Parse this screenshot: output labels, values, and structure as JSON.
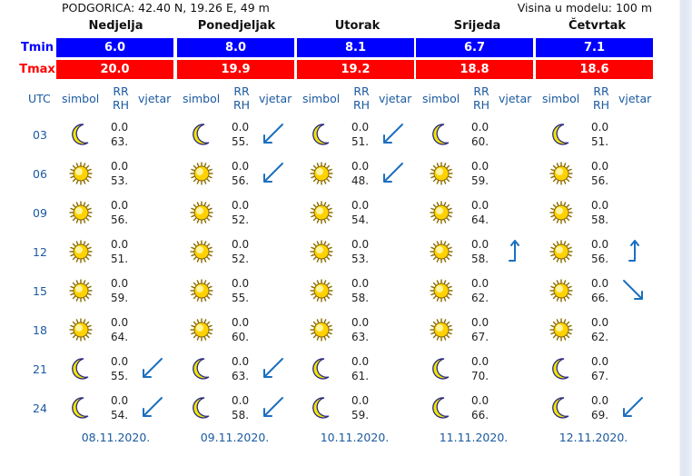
{
  "header": {
    "location": "PODGORICA: 42.40 N, 19.26 E, 49 m",
    "model_height": "Visina u modelu: 100 m"
  },
  "days": [
    "Nedjelja",
    "Ponedjeljak",
    "Utorak",
    "Srijeda",
    "Četvrtak"
  ],
  "tmin_label": "Tmin",
  "tmax_label": "Tmax",
  "tmin": [
    "6.0",
    "8.0",
    "8.1",
    "6.7",
    "7.1"
  ],
  "tmax": [
    "20.0",
    "19.9",
    "19.2",
    "18.8",
    "18.6"
  ],
  "columns": {
    "utc": "UTC",
    "symbol": "simbol",
    "rr": "RR",
    "rh": "RH",
    "wind": "vjetar"
  },
  "hours": [
    "03",
    "06",
    "09",
    "12",
    "15",
    "18",
    "21",
    "24"
  ],
  "forecast": [
    [
      {
        "icon": "moon-icon",
        "rr": "0.0",
        "rh": "63.",
        "wind": ""
      },
      {
        "icon": "sun-icon",
        "rr": "0.0",
        "rh": "53.",
        "wind": ""
      },
      {
        "icon": "sun-icon",
        "rr": "0.0",
        "rh": "56.",
        "wind": ""
      },
      {
        "icon": "sun-icon",
        "rr": "0.0",
        "rh": "51.",
        "wind": ""
      },
      {
        "icon": "sun-icon",
        "rr": "0.0",
        "rh": "59.",
        "wind": ""
      },
      {
        "icon": "sun-icon",
        "rr": "0.0",
        "rh": "64.",
        "wind": ""
      },
      {
        "icon": "moon-icon",
        "rr": "0.0",
        "rh": "55.",
        "wind": "ne"
      },
      {
        "icon": "moon-icon",
        "rr": "0.0",
        "rh": "54.",
        "wind": "ne"
      }
    ],
    [
      {
        "icon": "moon-icon",
        "rr": "0.0",
        "rh": "55.",
        "wind": "ne"
      },
      {
        "icon": "sun-icon",
        "rr": "0.0",
        "rh": "56.",
        "wind": "ne"
      },
      {
        "icon": "sun-icon",
        "rr": "0.0",
        "rh": "52.",
        "wind": ""
      },
      {
        "icon": "sun-icon",
        "rr": "0.0",
        "rh": "52.",
        "wind": ""
      },
      {
        "icon": "sun-icon",
        "rr": "0.0",
        "rh": "55.",
        "wind": ""
      },
      {
        "icon": "sun-icon",
        "rr": "0.0",
        "rh": "60.",
        "wind": ""
      },
      {
        "icon": "moon-icon",
        "rr": "0.0",
        "rh": "63.",
        "wind": "ne"
      },
      {
        "icon": "moon-icon",
        "rr": "0.0",
        "rh": "58.",
        "wind": "ne"
      }
    ],
    [
      {
        "icon": "moon-icon",
        "rr": "0.0",
        "rh": "51.",
        "wind": "ne"
      },
      {
        "icon": "sun-icon",
        "rr": "0.0",
        "rh": "48.",
        "wind": "ne"
      },
      {
        "icon": "sun-icon",
        "rr": "0.0",
        "rh": "54.",
        "wind": ""
      },
      {
        "icon": "sun-icon",
        "rr": "0.0",
        "rh": "53.",
        "wind": ""
      },
      {
        "icon": "sun-icon",
        "rr": "0.0",
        "rh": "58.",
        "wind": ""
      },
      {
        "icon": "sun-icon",
        "rr": "0.0",
        "rh": "63.",
        "wind": ""
      },
      {
        "icon": "moon-icon",
        "rr": "0.0",
        "rh": "61.",
        "wind": ""
      },
      {
        "icon": "moon-icon",
        "rr": "0.0",
        "rh": "59.",
        "wind": ""
      }
    ],
    [
      {
        "icon": "moon-icon",
        "rr": "0.0",
        "rh": "60.",
        "wind": ""
      },
      {
        "icon": "sun-icon",
        "rr": "0.0",
        "rh": "59.",
        "wind": ""
      },
      {
        "icon": "sun-icon",
        "rr": "0.0",
        "rh": "64.",
        "wind": ""
      },
      {
        "icon": "sun-icon",
        "rr": "0.0",
        "rh": "58.",
        "wind": "s"
      },
      {
        "icon": "sun-icon",
        "rr": "0.0",
        "rh": "62.",
        "wind": ""
      },
      {
        "icon": "sun-icon",
        "rr": "0.0",
        "rh": "67.",
        "wind": ""
      },
      {
        "icon": "moon-icon",
        "rr": "0.0",
        "rh": "70.",
        "wind": ""
      },
      {
        "icon": "moon-icon",
        "rr": "0.0",
        "rh": "66.",
        "wind": ""
      }
    ],
    [
      {
        "icon": "moon-icon",
        "rr": "0.0",
        "rh": "51.",
        "wind": ""
      },
      {
        "icon": "sun-icon",
        "rr": "0.0",
        "rh": "56.",
        "wind": ""
      },
      {
        "icon": "sun-icon",
        "rr": "0.0",
        "rh": "58.",
        "wind": ""
      },
      {
        "icon": "sun-icon",
        "rr": "0.0",
        "rh": "56.",
        "wind": "s"
      },
      {
        "icon": "sun-icon",
        "rr": "0.0",
        "rh": "66.",
        "wind": "nw"
      },
      {
        "icon": "sun-icon",
        "rr": "0.0",
        "rh": "62.",
        "wind": ""
      },
      {
        "icon": "moon-icon",
        "rr": "0.0",
        "rh": "67.",
        "wind": ""
      },
      {
        "icon": "moon-icon",
        "rr": "0.0",
        "rh": "69.",
        "wind": "ne"
      }
    ]
  ],
  "dates": [
    "08.11.2020.",
    "09.11.2020.",
    "10.11.2020.",
    "11.11.2020.",
    "12.11.2020."
  ],
  "colors": {
    "tmin_bg": "#0000ff",
    "tmax_bg": "#ff0000",
    "label_blue": "#1b5aa0",
    "moon": "#f2e600",
    "sun": "#ffd200",
    "arrow": "#1b6fbf"
  }
}
